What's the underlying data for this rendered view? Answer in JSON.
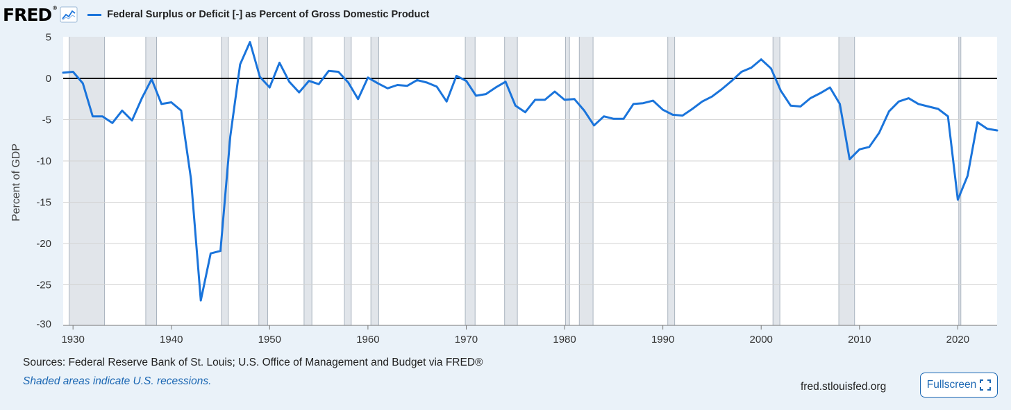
{
  "header": {
    "logo_text": "FRED",
    "logo_reg": "®",
    "legend_label": "Federal Surplus or Deficit [-] as Percent of Gross Domestic Product"
  },
  "footer": {
    "sources": "Sources: Federal Reserve Bank of St. Louis; U.S. Office of Management and Budget via FRED®",
    "shading_note": "Shaded areas indicate U.S. recessions.",
    "site": "fred.stlouisfed.org",
    "fullscreen_label": "Fullscreen"
  },
  "colors": {
    "series": "#1a74db",
    "background": "#eaf2f9",
    "plot_background": "#ffffff",
    "recession": "#e1e5ea",
    "zero_line": "#000000",
    "link": "#1b67b3"
  },
  "icons": {
    "logo_graph": "line-chart-icon",
    "fullscreen": "expand-icon"
  },
  "chart_data": {
    "type": "line",
    "title": "",
    "xlabel": "",
    "ylabel": "Percent of GDP",
    "xlim": [
      1929,
      2024
    ],
    "ylim": [
      -30,
      5
    ],
    "grid": true,
    "legend_position": "top-left",
    "x_ticks": [
      1930,
      1940,
      1950,
      1960,
      1970,
      1980,
      1990,
      2000,
      2010,
      2020
    ],
    "x_tick_labels": [
      "1930",
      "1940",
      "1950",
      "1960",
      "1970",
      "1980",
      "1990",
      "2000",
      "2010",
      "2020"
    ],
    "y_ticks": [
      5,
      0,
      -5,
      -10,
      -15,
      -20,
      -25,
      -30
    ],
    "y_tick_labels": [
      "5",
      "0",
      "-5",
      "-10",
      "-15",
      "-20",
      "-25",
      "-30"
    ],
    "recessions": [
      [
        1929.6,
        1933.2
      ],
      [
        1937.4,
        1938.5
      ],
      [
        1945.1,
        1945.8
      ],
      [
        1948.9,
        1949.8
      ],
      [
        1953.5,
        1954.3
      ],
      [
        1957.6,
        1958.3
      ],
      [
        1960.3,
        1961.1
      ],
      [
        1969.9,
        1970.9
      ],
      [
        1973.9,
        1975.2
      ],
      [
        1980.1,
        1980.5
      ],
      [
        1981.5,
        1982.9
      ],
      [
        1990.5,
        1991.2
      ],
      [
        2001.2,
        2001.9
      ],
      [
        2007.9,
        2009.5
      ],
      [
        2020.1,
        2020.3
      ]
    ],
    "series": [
      {
        "name": "Federal Surplus or Deficit [-] as Percent of Gross Domestic Product",
        "x": [
          1929,
          1930,
          1931,
          1932,
          1933,
          1934,
          1935,
          1936,
          1937,
          1938,
          1939,
          1940,
          1941,
          1942,
          1943,
          1944,
          1945,
          1946,
          1947,
          1948,
          1949,
          1950,
          1951,
          1952,
          1953,
          1954,
          1955,
          1956,
          1957,
          1958,
          1959,
          1960,
          1961,
          1962,
          1963,
          1964,
          1965,
          1966,
          1967,
          1968,
          1969,
          1970,
          1971,
          1972,
          1973,
          1974,
          1975,
          1976,
          1977,
          1978,
          1979,
          1980,
          1981,
          1982,
          1983,
          1984,
          1985,
          1986,
          1987,
          1988,
          1989,
          1990,
          1991,
          1992,
          1993,
          1994,
          1995,
          1996,
          1997,
          1998,
          1999,
          2000,
          2001,
          2002,
          2003,
          2004,
          2005,
          2006,
          2007,
          2008,
          2009,
          2010,
          2011,
          2012,
          2013,
          2014,
          2015,
          2016,
          2017,
          2018,
          2019,
          2020,
          2021,
          2022,
          2023,
          2024
        ],
        "y": [
          0.7,
          0.8,
          -0.6,
          -4.6,
          -4.6,
          -5.4,
          -3.9,
          -5.1,
          -2.4,
          -0.1,
          -3.1,
          -2.9,
          -3.9,
          -12.2,
          -26.9,
          -21.2,
          -20.9,
          -7.0,
          1.7,
          4.4,
          0.2,
          -1.1,
          1.9,
          -0.4,
          -1.7,
          -0.3,
          -0.7,
          0.9,
          0.8,
          -0.5,
          -2.5,
          0.1,
          -0.6,
          -1.2,
          -0.8,
          -0.9,
          -0.2,
          -0.5,
          -1.0,
          -2.8,
          0.3,
          -0.3,
          -2.1,
          -1.9,
          -1.1,
          -0.4,
          -3.3,
          -4.1,
          -2.6,
          -2.6,
          -1.6,
          -2.6,
          -2.5,
          -3.9,
          -5.7,
          -4.6,
          -4.9,
          -4.9,
          -3.1,
          -3.0,
          -2.7,
          -3.8,
          -4.4,
          -4.5,
          -3.7,
          -2.8,
          -2.2,
          -1.3,
          -0.3,
          0.8,
          1.3,
          2.3,
          1.2,
          -1.5,
          -3.3,
          -3.4,
          -2.4,
          -1.8,
          -1.1,
          -3.1,
          -9.8,
          -8.6,
          -8.3,
          -6.6,
          -4.0,
          -2.8,
          -2.4,
          -3.1,
          -3.4,
          -3.7,
          -4.6,
          -14.7,
          -11.8,
          -5.3,
          -6.1,
          -6.3
        ]
      }
    ]
  }
}
